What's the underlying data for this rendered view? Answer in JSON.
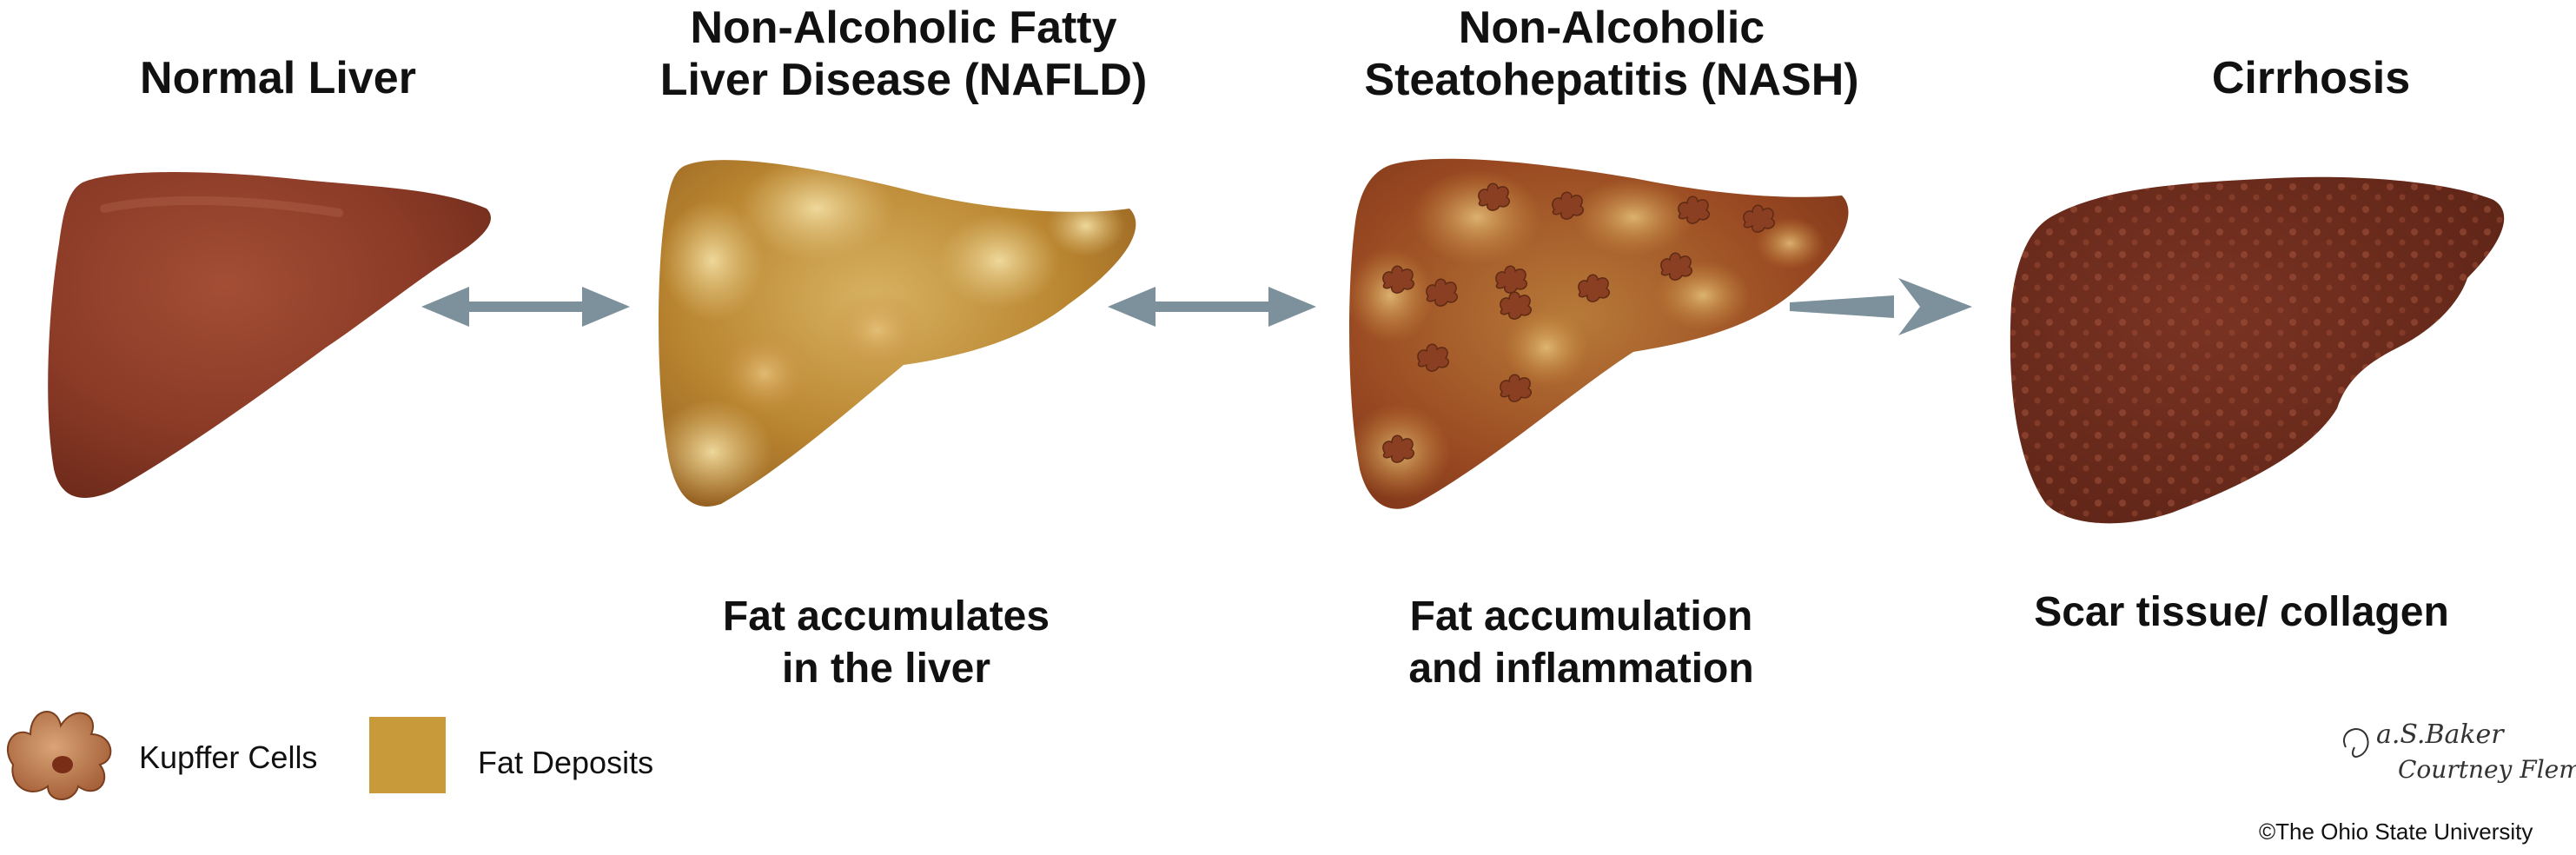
{
  "stages": [
    {
      "title_lines": [
        "Normal Liver"
      ],
      "caption_lines": []
    },
    {
      "title_lines": [
        "Non-Alcoholic Fatty",
        "Liver Disease (NAFLD)"
      ],
      "caption_lines": [
        "Fat accumulates",
        "in the liver"
      ]
    },
    {
      "title_lines": [
        "Non-Alcoholic",
        "Steatohepatitis (NASH)"
      ],
      "caption_lines": [
        "Fat accumulation",
        "and inflammation"
      ]
    },
    {
      "title_lines": [
        "Cirrhosis"
      ],
      "caption_lines": [
        "Scar tissue/ collagen"
      ]
    }
  ],
  "legend": {
    "kupffer_label": "Kupffer Cells",
    "fat_label": "Fat Deposits",
    "fat_color": "#c99a3a"
  },
  "signature": {
    "line1": "a.S.Baker",
    "line2": "Courtney Fleming"
  },
  "copyright": "©The Ohio State University",
  "colors": {
    "normal_liver": "#8a3a26",
    "nafld_liver": "#b9852f",
    "nash_liver": "#9a4a22",
    "cirrhosis_liver": "#6b2a1c",
    "arrow": "#7d919c"
  }
}
